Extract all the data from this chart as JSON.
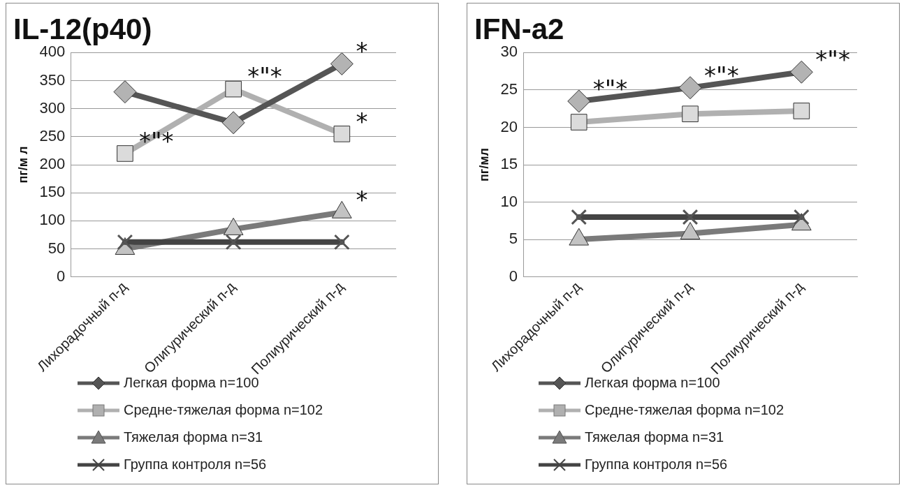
{
  "chart_data": [
    {
      "type": "line",
      "title": "IL-12(p40)",
      "ylabel": "пг/м л",
      "categories": [
        "Лихорадочный п-д",
        "Олигурический п-д",
        "Полиурический п-д"
      ],
      "series": [
        {
          "name": "Легкая форма n=100",
          "color": "#555555",
          "marker": "diamond",
          "values": [
            330,
            275,
            380
          ]
        },
        {
          "name": "Средне-тяжелая форма n=102",
          "color": "#b0b0b0",
          "marker": "square",
          "values": [
            220,
            335,
            255
          ]
        },
        {
          "name": "Тяжелая форма n=31",
          "color": "#7a7a7a",
          "marker": "triangle",
          "values": [
            50,
            85,
            115
          ]
        },
        {
          "name": "Группа контроля n=56",
          "color": "#444444",
          "marker": "cross",
          "values": [
            62,
            62,
            62
          ]
        }
      ],
      "ylim": [
        0,
        400
      ],
      "yticks": [
        0,
        50,
        100,
        150,
        200,
        250,
        300,
        350,
        400
      ],
      "grid": "y",
      "legend": "bottom",
      "annotations": [
        {
          "text": "*\"*",
          "x": "Лихорадочный п-д",
          "y": 220
        },
        {
          "text": "*\"*",
          "x": "Олигурический п-д",
          "y": 335
        },
        {
          "text": "*",
          "x": "Полиурический п-д",
          "y": 380
        },
        {
          "text": "*",
          "x": "Полиурический п-д",
          "y": 255
        },
        {
          "text": "*",
          "x": "Полиурический п-д",
          "y": 115
        }
      ]
    },
    {
      "type": "line",
      "title": "IFN-a2",
      "ylabel": "пг/мл",
      "categories": [
        "Лихорадочный п-д",
        "Олигурический п-д",
        "Полиурический п-д"
      ],
      "series": [
        {
          "name": "Легкая форма n=100",
          "color": "#555555",
          "marker": "diamond",
          "values": [
            23.5,
            25.3,
            27.4
          ]
        },
        {
          "name": "Средне-тяжелая форма n=102",
          "color": "#b0b0b0",
          "marker": "square",
          "values": [
            20.7,
            21.8,
            22.2
          ]
        },
        {
          "name": "Тяжелая форма n=31",
          "color": "#7a7a7a",
          "marker": "triangle",
          "values": [
            5,
            5.8,
            7
          ]
        },
        {
          "name": "Группа контроля n=56",
          "color": "#444444",
          "marker": "cross",
          "values": [
            8,
            8,
            8
          ]
        }
      ],
      "ylim": [
        0,
        30
      ],
      "yticks": [
        0,
        5,
        10,
        15,
        20,
        25,
        30
      ],
      "grid": "y",
      "legend": "bottom",
      "annotations": [
        {
          "text": "*\"*",
          "x": "Лихорадочный п-д",
          "y": 23.5
        },
        {
          "text": "*\"*",
          "x": "Олигурический п-д",
          "y": 25.3
        },
        {
          "text": "*\"*",
          "x": "Полиурический п-д",
          "y": 27.4
        }
      ]
    }
  ]
}
